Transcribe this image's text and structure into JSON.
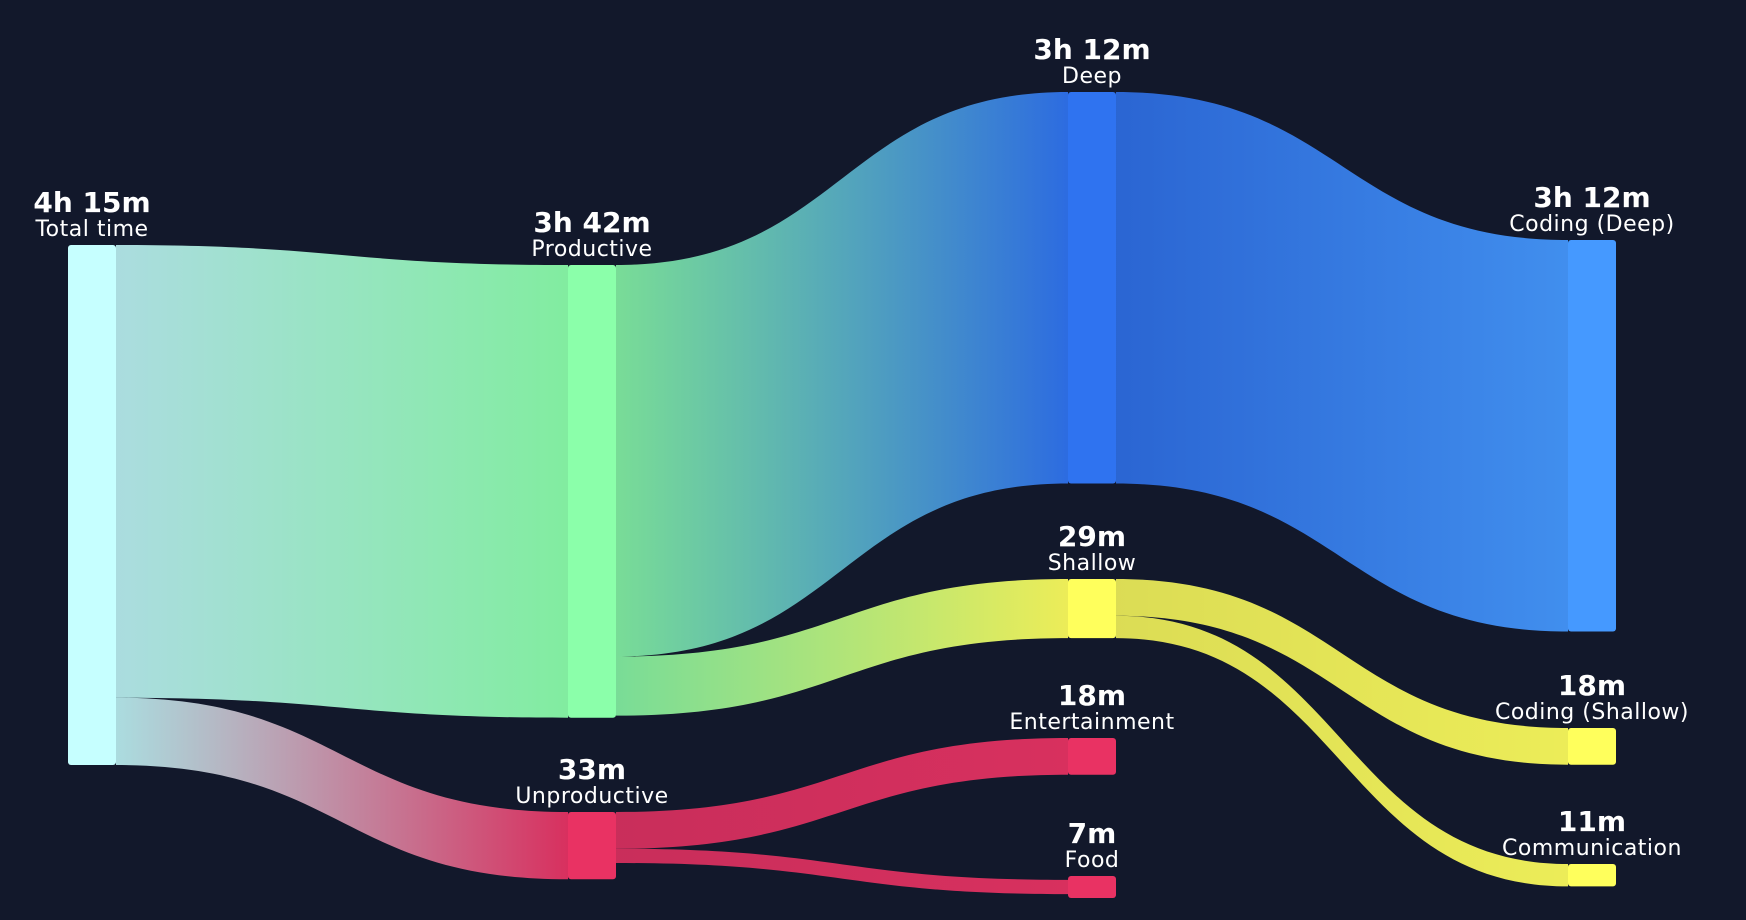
{
  "colors": {
    "background": "#12182b",
    "total": "#c6ffff",
    "productive": "#8bffaa",
    "unproductive": "#e93263",
    "deep": "#2f73f0",
    "shallow": "#ffff5c",
    "coding_deep": "#4599ff"
  },
  "chart_data": {
    "type": "sankey",
    "unit": "minutes",
    "nodes": [
      {
        "id": "total",
        "value_text": "4h 15m",
        "name": "Total time",
        "minutes": 255,
        "column": 0,
        "color": "#c6ffff"
      },
      {
        "id": "productive",
        "value_text": "3h 42m",
        "name": "Productive",
        "minutes": 222,
        "column": 1,
        "color": "#8bffaa"
      },
      {
        "id": "unproductive",
        "value_text": "33m",
        "name": "Unproductive",
        "minutes": 33,
        "column": 1,
        "color": "#e93263"
      },
      {
        "id": "deep",
        "value_text": "3h 12m",
        "name": "Deep",
        "minutes": 192,
        "column": 2,
        "color": "#2f73f0"
      },
      {
        "id": "shallow",
        "value_text": "29m",
        "name": "Shallow",
        "minutes": 29,
        "column": 2,
        "color": "#ffff5c"
      },
      {
        "id": "entertainment",
        "value_text": "18m",
        "name": "Entertainment",
        "minutes": 18,
        "column": 2,
        "color": "#e93263"
      },
      {
        "id": "food",
        "value_text": "7m",
        "name": "Food",
        "minutes": 7,
        "column": 2,
        "color": "#e93263"
      },
      {
        "id": "coding_deep",
        "value_text": "3h 12m",
        "name": "Coding (Deep)",
        "minutes": 192,
        "column": 3,
        "color": "#4599ff"
      },
      {
        "id": "coding_shallow",
        "value_text": "18m",
        "name": "Coding (Shallow)",
        "minutes": 18,
        "column": 3,
        "color": "#ffff5c"
      },
      {
        "id": "communication",
        "value_text": "11m",
        "name": "Communication",
        "minutes": 11,
        "column": 3,
        "color": "#ffff5c"
      }
    ],
    "links": [
      {
        "source": "total",
        "target": "productive",
        "minutes": 222
      },
      {
        "source": "total",
        "target": "unproductive",
        "minutes": 33
      },
      {
        "source": "productive",
        "target": "deep",
        "minutes": 192
      },
      {
        "source": "productive",
        "target": "shallow",
        "minutes": 29
      },
      {
        "source": "unproductive",
        "target": "entertainment",
        "minutes": 18
      },
      {
        "source": "unproductive",
        "target": "food",
        "minutes": 7
      },
      {
        "source": "deep",
        "target": "coding_deep",
        "minutes": 192
      },
      {
        "source": "shallow",
        "target": "coding_shallow",
        "minutes": 18
      },
      {
        "source": "shallow",
        "target": "communication",
        "minutes": 11
      }
    ]
  }
}
